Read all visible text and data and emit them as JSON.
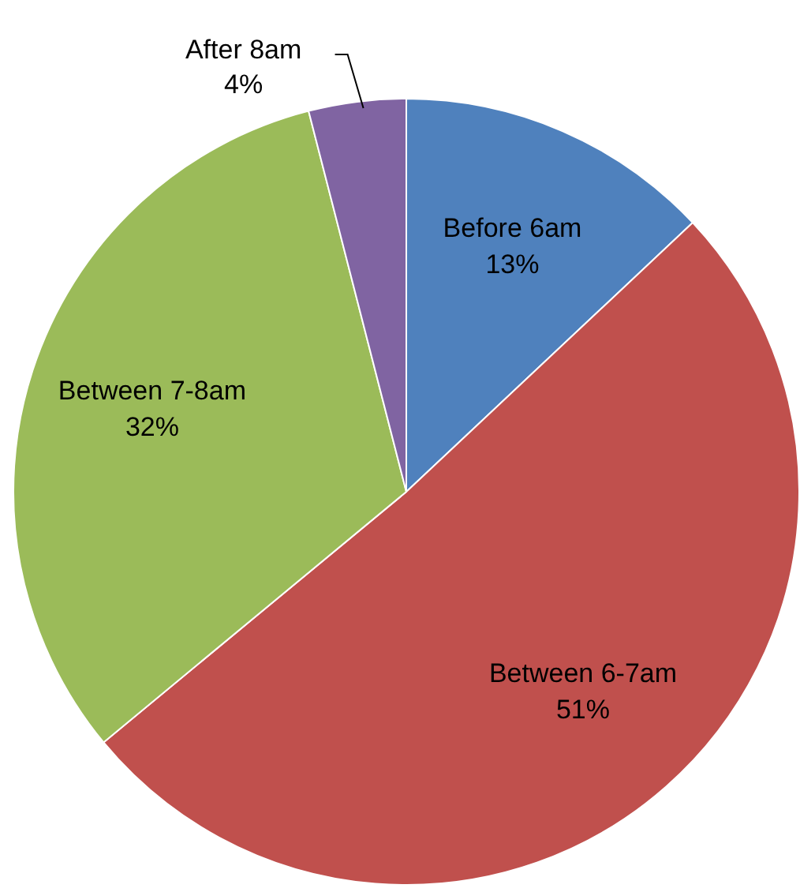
{
  "chart_data": {
    "type": "pie",
    "categories": [
      "Before 6am",
      "Between 6-7am",
      "Between 7-8am",
      "After 8am"
    ],
    "values": [
      13,
      51,
      32,
      4
    ],
    "colors": [
      "#4f81bd",
      "#c0504d",
      "#9bbb59",
      "#8064a2"
    ],
    "value_labels": [
      "13%",
      "51%",
      "32%",
      "4%"
    ],
    "legend": false
  }
}
